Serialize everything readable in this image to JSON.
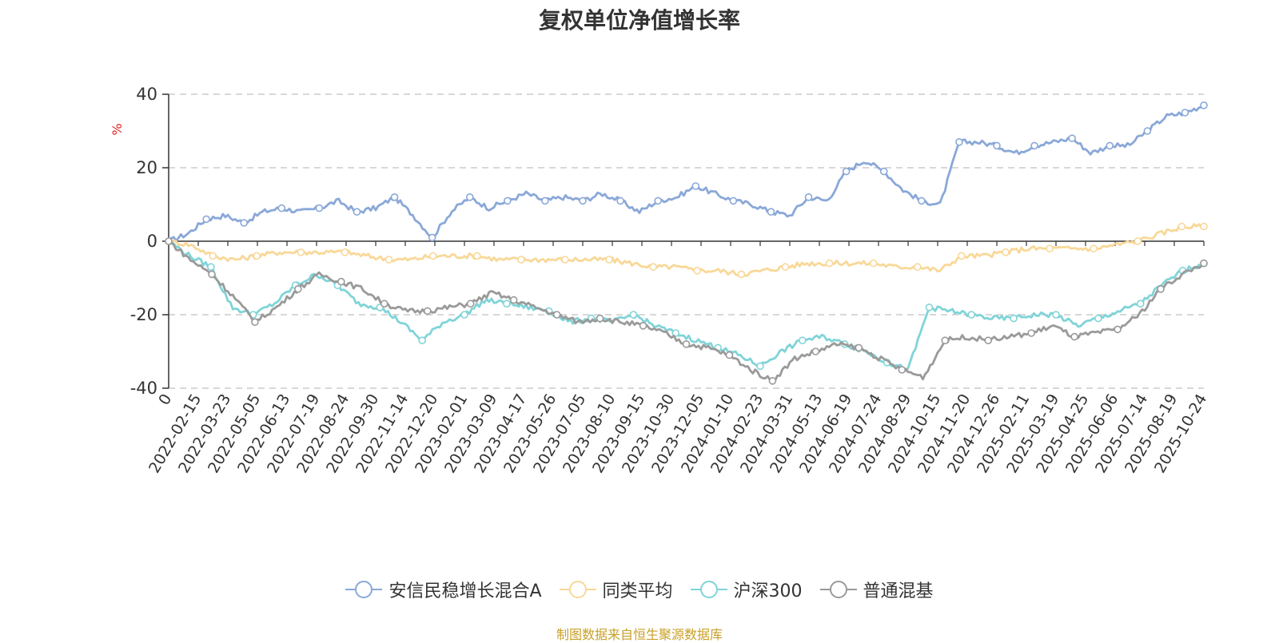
{
  "chart_data": {
    "type": "line",
    "title": "复权单位净值增长率",
    "ylabel": "%",
    "ylim": [
      -40,
      40
    ],
    "y_ticks": [
      40,
      20,
      0,
      -20,
      -40
    ],
    "x_ticks": [
      "0",
      "2022-02-15",
      "2022-03-23",
      "2022-05-05",
      "2022-06-13",
      "2022-07-19",
      "2022-08-24",
      "2022-09-30",
      "2022-11-14",
      "2022-12-20",
      "2023-02-01",
      "2023-03-09",
      "2023-04-17",
      "2023-05-26",
      "2023-07-05",
      "2023-08-10",
      "2023-09-15",
      "2023-10-30",
      "2023-12-05",
      "2024-01-10",
      "2024-02-23",
      "2024-03-31",
      "2024-05-13",
      "2024-06-19",
      "2024-07-24",
      "2024-08-29",
      "2024-10-15",
      "2024-11-20",
      "2024-12-26",
      "2025-02-11",
      "2025-03-19",
      "2025-04-25",
      "2025-06-06",
      "2025-07-14",
      "2025-08-19",
      "2025-10-24"
    ],
    "series": [
      {
        "name": "安信民稳增长混合A",
        "color": "#8aa8d8",
        "values": [
          0,
          2,
          6,
          7,
          5,
          8,
          9,
          8,
          9,
          11,
          8,
          9,
          12,
          7,
          1,
          8,
          12,
          9,
          11,
          13,
          11,
          12,
          11,
          13,
          11,
          8,
          11,
          12,
          15,
          13,
          11,
          10,
          8,
          7,
          12,
          11,
          19,
          22,
          19,
          14,
          11,
          10,
          27,
          27,
          26,
          24,
          26,
          27,
          28,
          24,
          26,
          26,
          30,
          34,
          35,
          37
        ]
      },
      {
        "name": "同类平均",
        "color": "#f8d898",
        "values": [
          0,
          -1,
          -4,
          -5,
          -4,
          -3,
          -3,
          -3,
          -3,
          -4,
          -5,
          -5,
          -4,
          -4,
          -4,
          -5,
          -5,
          -5,
          -5,
          -5,
          -5,
          -6,
          -7,
          -7,
          -8,
          -8,
          -9,
          -8,
          -7,
          -6,
          -6,
          -6,
          -6,
          -7,
          -7,
          -8,
          -4,
          -4,
          -3,
          -2,
          -2,
          -2,
          -2,
          -1,
          0,
          2,
          4,
          4
        ]
      },
      {
        "name": "沪深300",
        "color": "#80d4d8",
        "values": [
          0,
          -4,
          -7,
          -18,
          -20,
          -17,
          -12,
          -9,
          -12,
          -17,
          -18,
          -22,
          -27,
          -22,
          -20,
          -16,
          -17,
          -18,
          -19,
          -22,
          -21,
          -22,
          -20,
          -23,
          -25,
          -27,
          -29,
          -31,
          -34,
          -30,
          -27,
          -26,
          -28,
          -30,
          -33,
          -35,
          -18,
          -19,
          -20,
          -21,
          -21,
          -20,
          -20,
          -23,
          -21,
          -19,
          -17,
          -12,
          -8,
          -6
        ]
      },
      {
        "name": "普通混基",
        "color": "#9a9a9a",
        "values": [
          0,
          -5,
          -9,
          -15,
          -22,
          -18,
          -13,
          -9,
          -11,
          -13,
          -17,
          -19,
          -19,
          -18,
          -17,
          -14,
          -16,
          -18,
          -20,
          -22,
          -21,
          -22,
          -23,
          -25,
          -28,
          -29,
          -31,
          -35,
          -38,
          -32,
          -30,
          -28,
          -29,
          -32,
          -35,
          -37,
          -27,
          -26,
          -27,
          -26,
          -25,
          -23,
          -26,
          -25,
          -24,
          -20,
          -13,
          -9,
          -6
        ]
      }
    ]
  },
  "source_text": "制图数据来自恒生聚源数据库"
}
